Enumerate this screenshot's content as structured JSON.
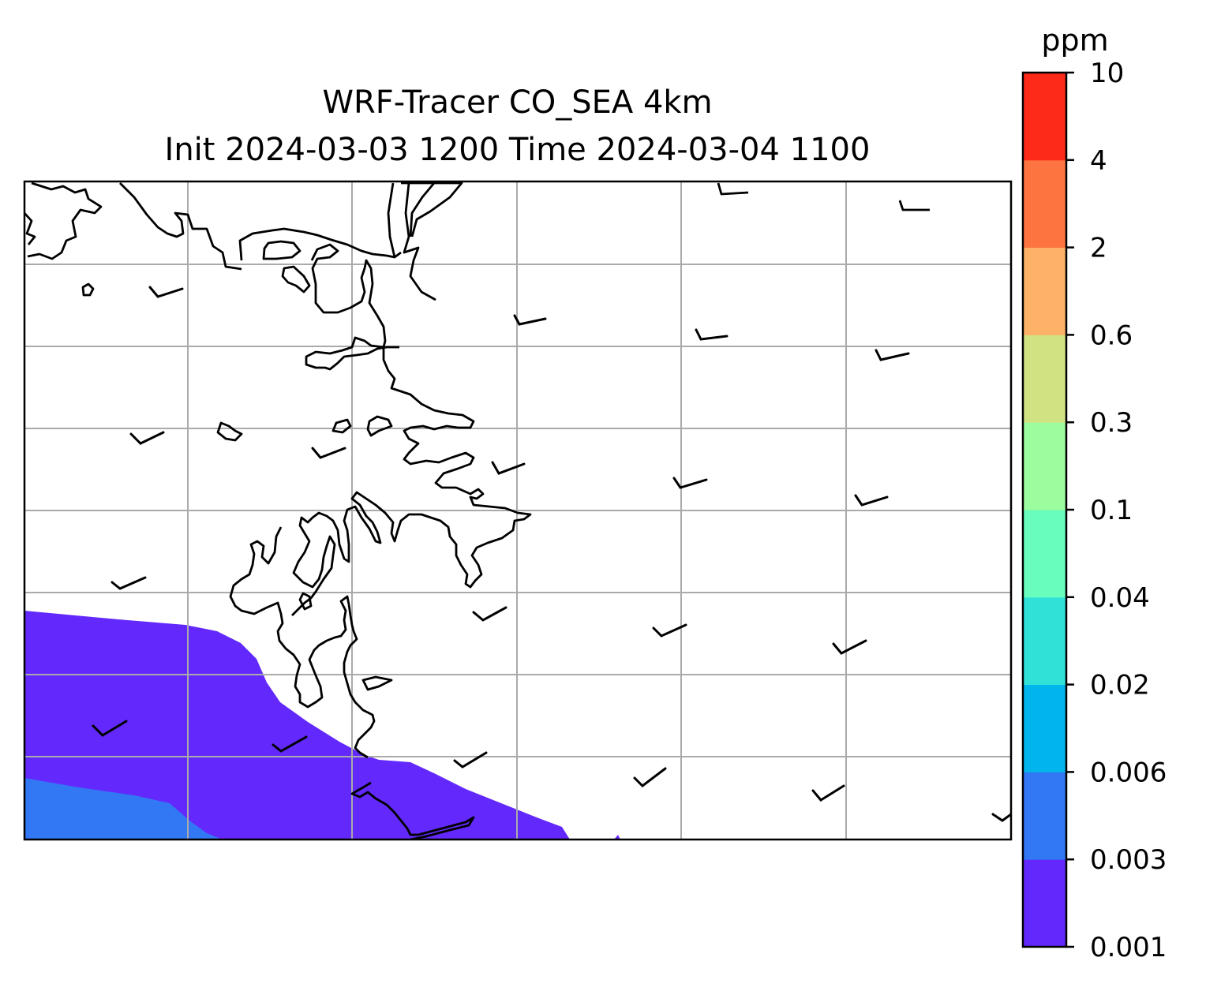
{
  "title_line1": "WRF-Tracer CO_SEA 4km",
  "title_line2": "Init 2024-03-03 1200 Time 2024-03-04 1100",
  "colorbar": {
    "unit": "ppm",
    "levels": [
      "0.001",
      "0.003",
      "0.006",
      "0.02",
      "0.04",
      "0.1",
      "0.3",
      "0.6",
      "2",
      "4",
      "10"
    ],
    "colors": [
      "#6329fc",
      "#3277f4",
      "#00b5ec",
      "#2fe1d7",
      "#69fdbd",
      "#9cfd9e",
      "#d1e283",
      "#fdb268",
      "#fd7440",
      "#fd2a19"
    ]
  },
  "map": {
    "gridlines": true,
    "gridline_color": "#aaaaaa",
    "coastline_color": "#000000",
    "filled_levels_present": [
      "0.001-0.003",
      "0.003-0.006"
    ],
    "wind_barbs": "black, light winds (half/short barbs)"
  }
}
